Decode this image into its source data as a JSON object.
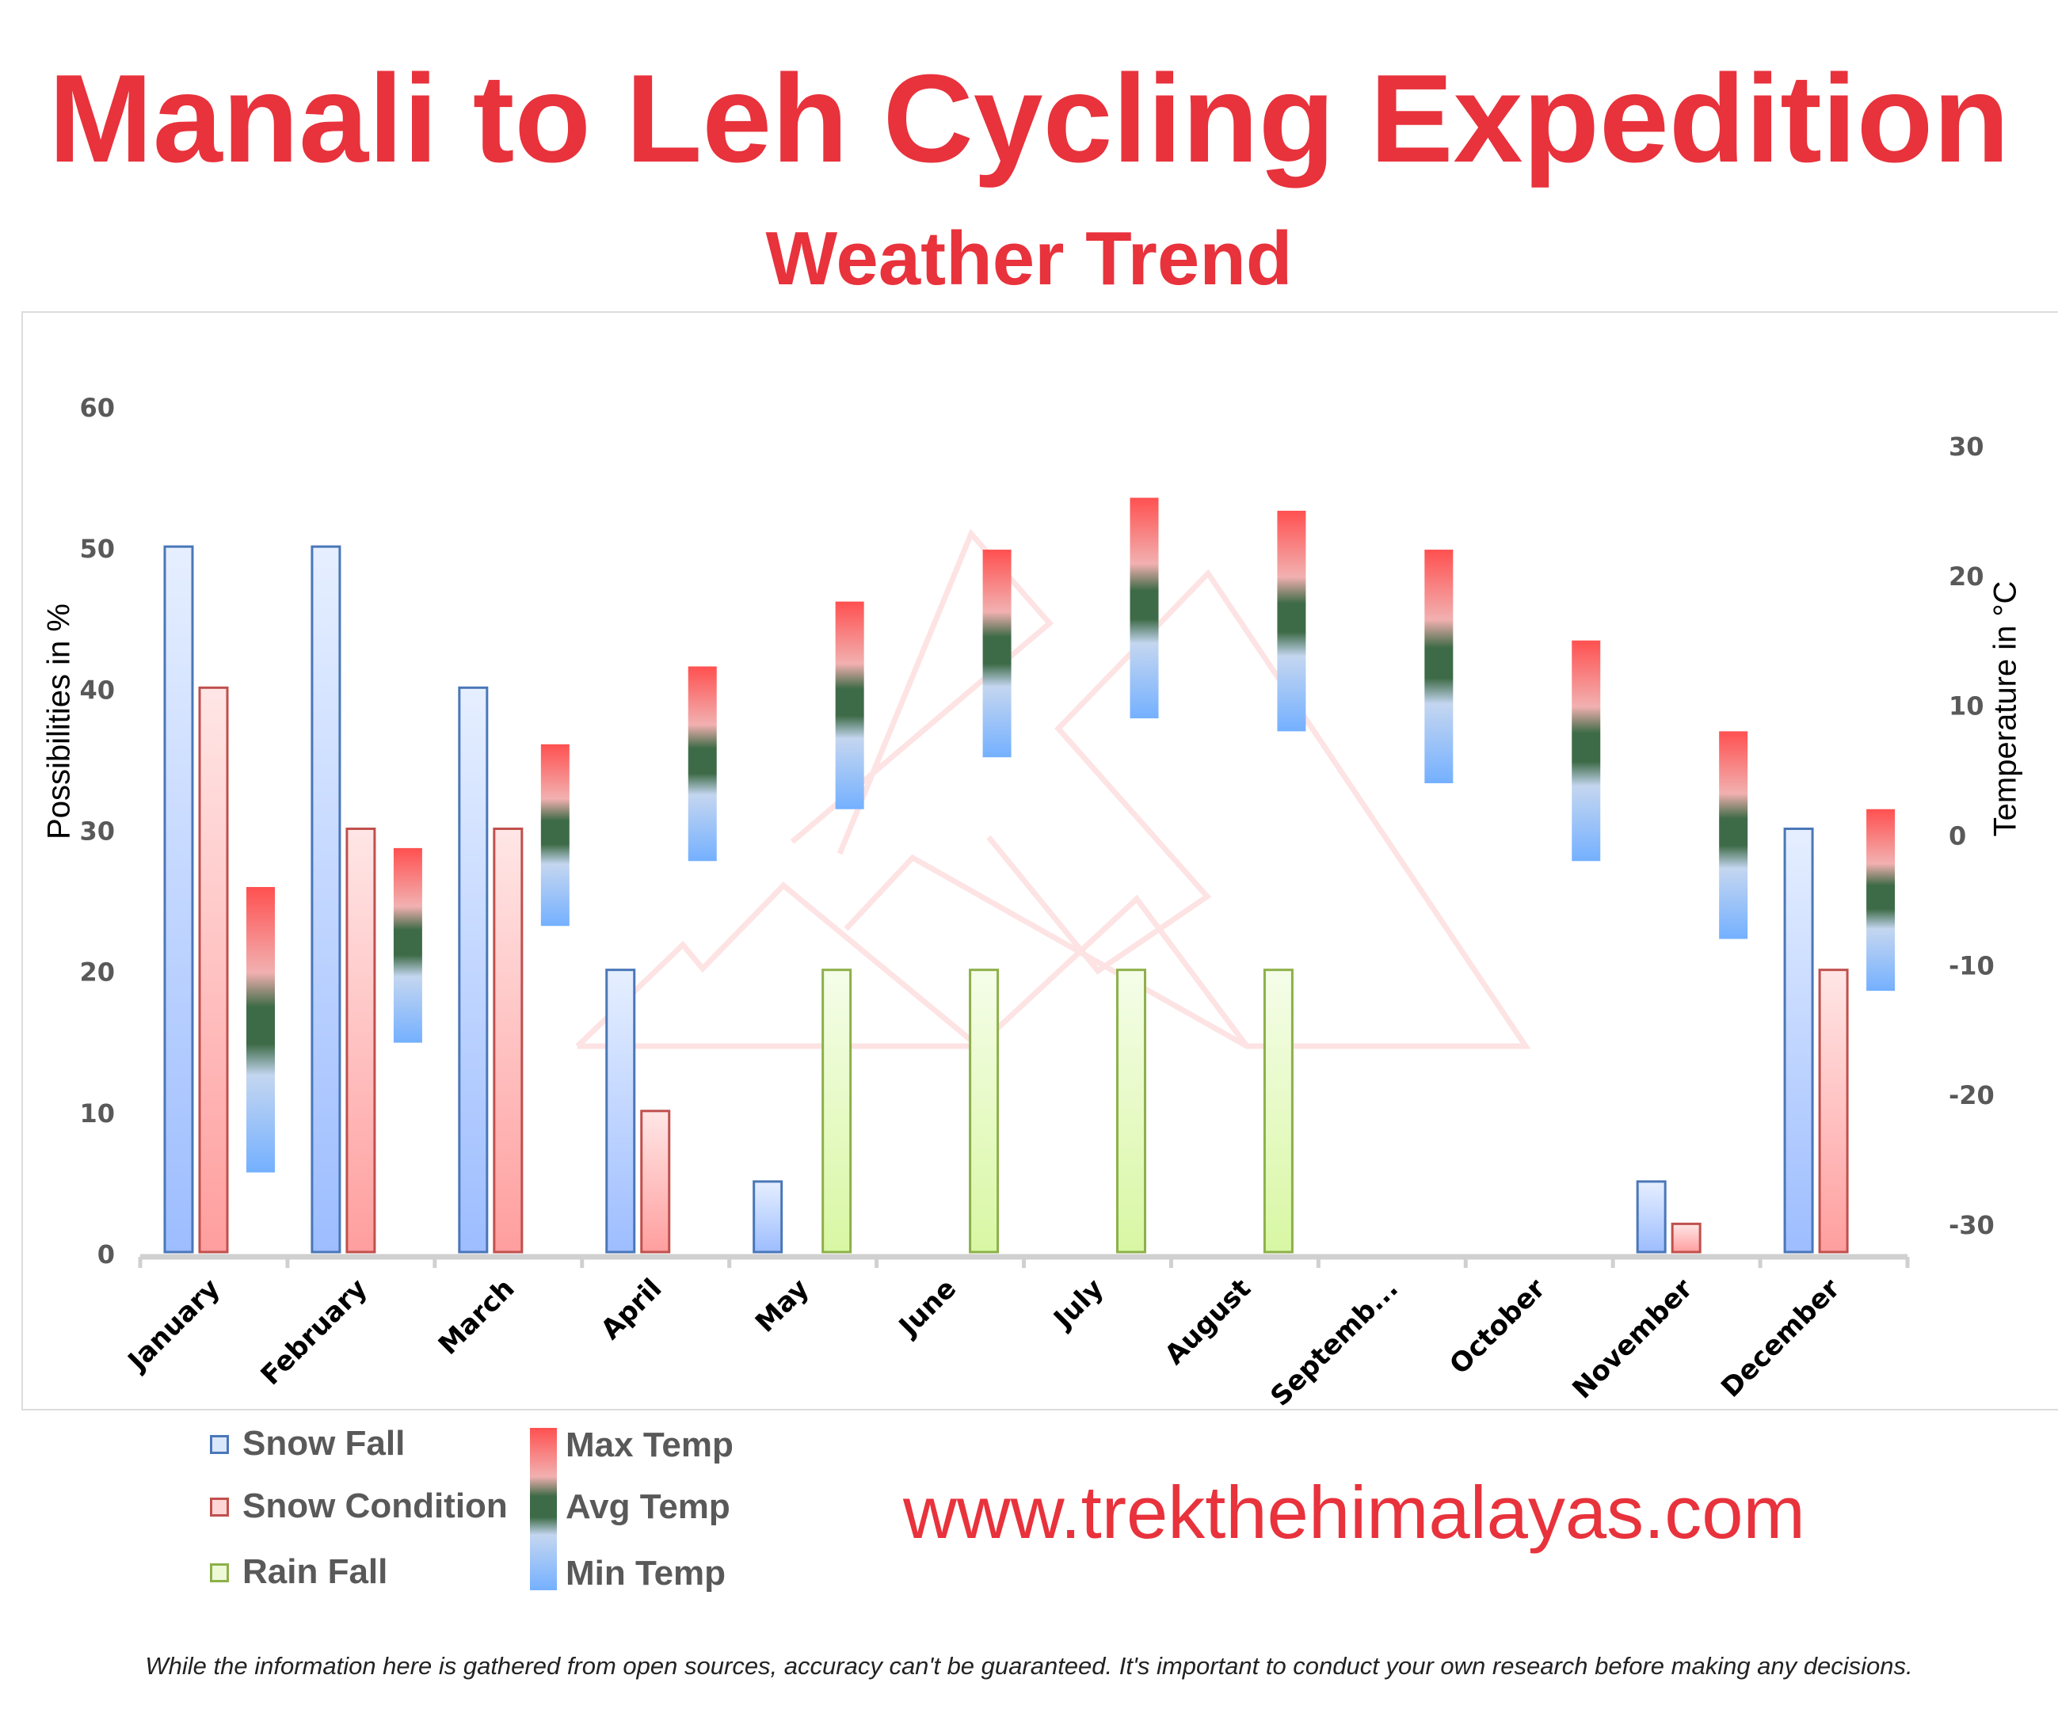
{
  "header": {
    "title": "Manali to Leh Cycling Expedition",
    "subtitle": "Weather Trend"
  },
  "chart_data": {
    "type": "bar",
    "categories": [
      "January",
      "February",
      "March",
      "April",
      "May",
      "June",
      "July",
      "August",
      "Septemb...",
      "October",
      "November",
      "December"
    ],
    "ylabel": "Possibilities in %",
    "ylim": [
      0,
      60
    ],
    "yticks": [
      "0",
      "10",
      "20",
      "30",
      "40",
      "50",
      "60"
    ],
    "y2label": "Temperature in °C",
    "y2lim": [
      -30,
      30
    ],
    "y2ticks": [
      "-30",
      "-20",
      "-10",
      "0",
      "10",
      "20",
      "30"
    ],
    "grid": false,
    "legend_position": "bottom-left",
    "series": [
      {
        "name": "Snow Fall",
        "axis": "left",
        "color": "#4a77b8",
        "values": [
          50,
          50,
          40,
          20,
          5,
          0,
          0,
          0,
          0,
          0,
          5,
          30
        ]
      },
      {
        "name": "Snow Condition",
        "axis": "left",
        "color": "#c0504d",
        "values": [
          40,
          30,
          30,
          10,
          0,
          0,
          0,
          0,
          0,
          0,
          2,
          20
        ]
      },
      {
        "name": "Rain Fall",
        "axis": "right-cluster",
        "color": "#8db04a",
        "values": [
          0,
          0,
          0,
          0,
          20,
          20,
          20,
          20,
          0,
          0,
          0,
          0
        ]
      }
    ],
    "temperature": {
      "max_name": "Max Temp",
      "avg_name": "Avg Temp",
      "min_name": "Min Temp",
      "max": [
        -4,
        -1,
        7,
        13,
        18,
        22,
        26,
        25,
        22,
        15,
        8,
        2
      ],
      "avg": [
        -15,
        -8.5,
        0,
        5.5,
        10,
        14,
        17.5,
        16.5,
        13,
        6.5,
        0,
        -5
      ],
      "min": [
        -26,
        -16,
        -7,
        -2,
        2,
        6,
        9,
        8,
        4,
        -2,
        -8,
        -12
      ],
      "colors": {
        "max": "#ff5050",
        "avg": "#3e6b47",
        "min": "#7ab4ff"
      }
    }
  },
  "legend": {
    "snow_fall": "Snow Fall",
    "snow_condition": "Snow Condition",
    "rain_fall": "Rain Fall",
    "max_temp": "Max Temp",
    "avg_temp": "Avg Temp",
    "min_temp": "Min Temp"
  },
  "footer": {
    "website": "www.trekthehimalayas.com",
    "disclaimer": "While the information here is gathered from open sources, accuracy can't be guaranteed. It's important to conduct your own research before making any decisions."
  }
}
